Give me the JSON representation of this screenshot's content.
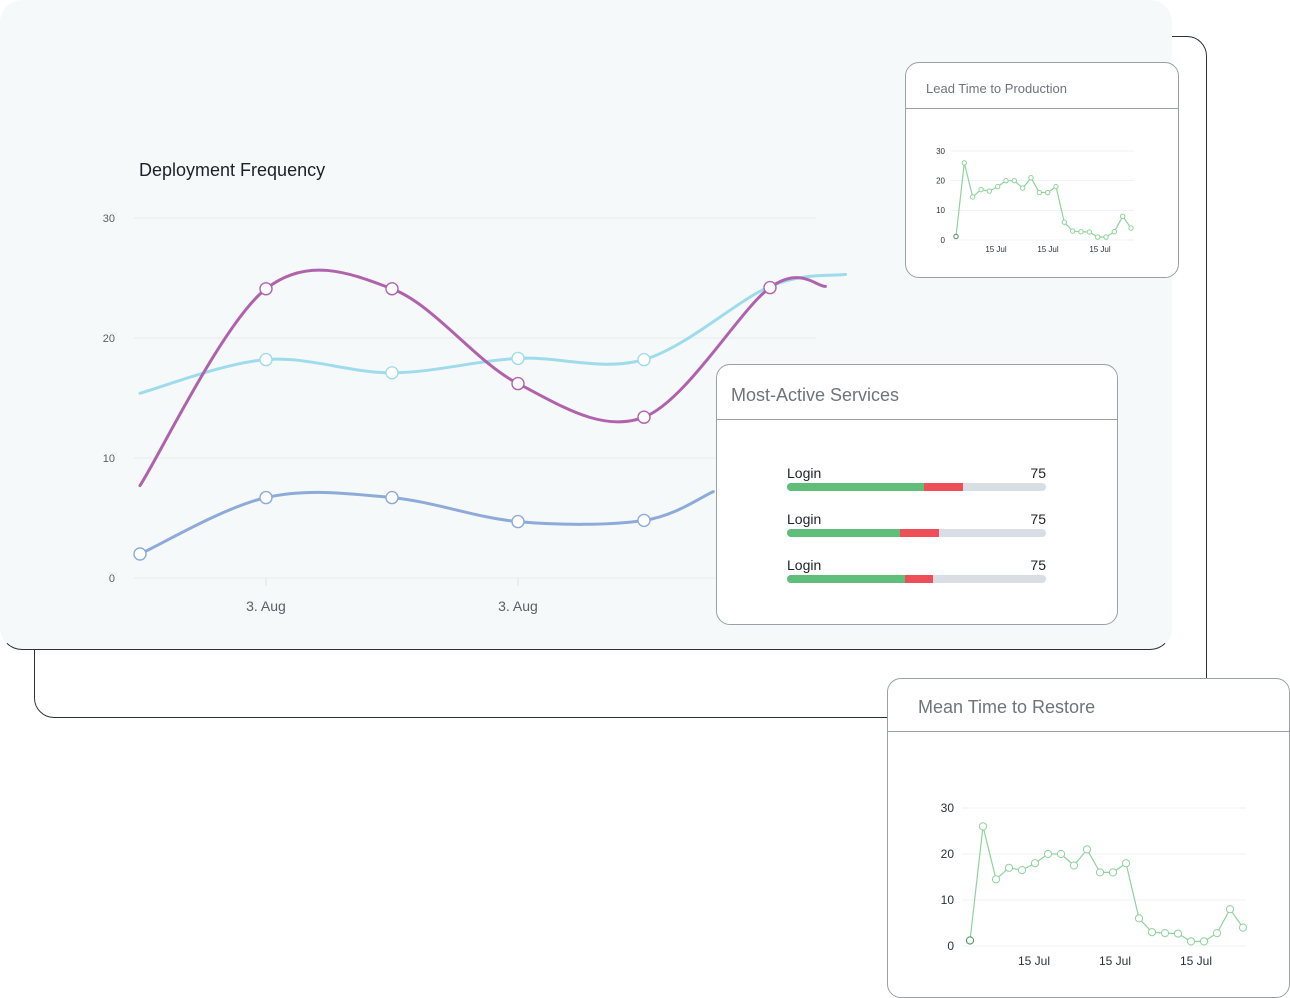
{
  "colors": {
    "series_cyan": "#9edcec",
    "series_purple": "#b063ad",
    "series_blue": "#8daad9",
    "sparkline": "#8fd39c",
    "bar_good": "#5fbf7a",
    "bar_bad": "#ee4e58",
    "bar_track": "#d9dee4"
  },
  "deployment": {
    "title": "Deployment Frequency",
    "chart_data": {
      "type": "line",
      "title": "Deployment Frequency",
      "y_ticks": [
        "30",
        "20",
        "10",
        "0"
      ],
      "x_tick_labels": [
        "3. Aug",
        "3. Aug"
      ],
      "ylim": [
        0,
        30
      ],
      "grid": true,
      "series": [
        {
          "color_key": "series_cyan",
          "x": [
            0,
            1,
            2,
            3,
            4,
            5,
            5.6
          ],
          "values": [
            15.4,
            18.2,
            17.1,
            18.3,
            18.2,
            24.3,
            25.3
          ],
          "markers": [
            false,
            true,
            true,
            true,
            true,
            false,
            false
          ]
        },
        {
          "color_key": "series_purple",
          "x": [
            0,
            1,
            2,
            3,
            4,
            5,
            5.44
          ],
          "values": [
            7.7,
            24.1,
            24.1,
            16.2,
            13.4,
            24.2,
            24.3
          ],
          "markers": [
            false,
            true,
            true,
            true,
            true,
            true,
            false
          ]
        },
        {
          "color_key": "series_blue",
          "x": [
            0,
            1,
            2,
            3,
            4,
            4.55
          ],
          "values": [
            2.0,
            6.7,
            6.7,
            4.7,
            4.8,
            7.2
          ],
          "markers": [
            true,
            true,
            true,
            true,
            true,
            false
          ]
        }
      ]
    }
  },
  "lead_time": {
    "title": "Lead Time to Production",
    "chart_data": {
      "type": "line",
      "y_ticks": [
        "30",
        "20",
        "10",
        "0"
      ],
      "x_tick_labels": [
        "15 Jul",
        "15 Jul",
        "15 Jul"
      ],
      "ylim": [
        0,
        30
      ],
      "values": [
        1.2,
        26,
        14.5,
        17,
        16.5,
        18,
        20,
        20,
        17.5,
        21,
        16,
        16,
        18,
        6,
        3,
        2.8,
        2.7,
        1,
        1,
        2.8,
        8,
        4
      ]
    }
  },
  "mttr": {
    "title": "Mean Time to Restore",
    "chart_data": {
      "type": "line",
      "y_ticks": [
        "30",
        "20",
        "10",
        "0"
      ],
      "x_tick_labels": [
        "15 Jul",
        "15 Jul",
        "15 Jul"
      ],
      "ylim": [
        0,
        30
      ],
      "values": [
        1.2,
        26,
        14.5,
        17,
        16.5,
        18,
        20,
        20,
        17.5,
        21,
        16,
        16,
        18,
        6,
        3,
        2.8,
        2.7,
        1,
        1,
        2.8,
        8,
        4
      ]
    }
  },
  "services": {
    "title": "Most-Active Services",
    "items": [
      {
        "label": "Login",
        "value": "75",
        "good": 0.53,
        "bad": 0.15
      },
      {
        "label": "Login",
        "value": "75",
        "good": 0.435,
        "bad": 0.15
      },
      {
        "label": "Login",
        "value": "75",
        "good": 0.455,
        "bad": 0.11
      }
    ]
  }
}
